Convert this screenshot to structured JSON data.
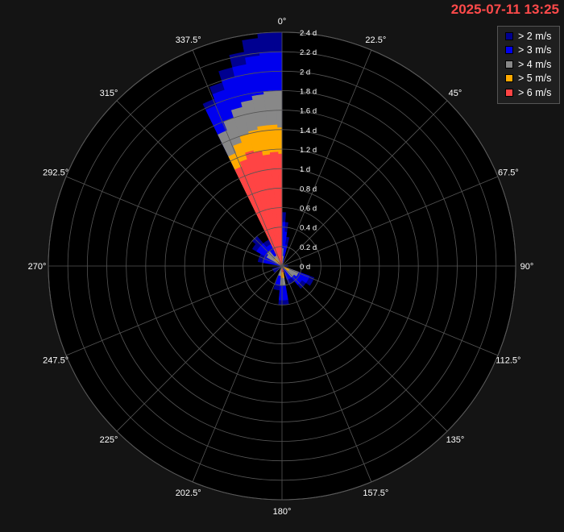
{
  "timestamp": "2025-07-11 13:25",
  "chart_data": {
    "type": "polar-stacked-bar",
    "title": "",
    "radial_unit": "d",
    "radial_range": [
      0,
      2.4
    ],
    "radial_ticks": [
      0,
      0.2,
      0.4,
      0.6,
      0.8,
      1,
      1.2,
      1.4,
      1.6,
      1.8,
      2,
      2.2,
      2.4
    ],
    "radial_tick_labels": [
      "0 d",
      "0.2 d",
      "0.4 d",
      "0.6 d",
      "0.8 d",
      "1 d",
      "1.2 d",
      "1.4 d",
      "1.6 d",
      "1.8 d",
      "2 d",
      "2.2 d",
      "2.4 d"
    ],
    "angle_labels": [
      "0°",
      "22.5°",
      "45°",
      "67.5°",
      "90°",
      "112.5°",
      "135°",
      "157.5°",
      "180°",
      "202.5°",
      "225°",
      "247.5°",
      "270°",
      "292.5°",
      "315°",
      "337.5°"
    ],
    "grid": true,
    "legend_position": "top-right",
    "series": [
      {
        "name": "> 2 m/s",
        "color": "#000090",
        "bins": [
          {
            "from": -26,
            "to": -22,
            "r": 1.85
          },
          {
            "from": -22,
            "to": -18,
            "r": 1.98
          },
          {
            "from": -18,
            "to": -14,
            "r": 2.1
          },
          {
            "from": -14,
            "to": -10,
            "r": 2.23
          },
          {
            "from": -10,
            "to": -6,
            "r": 2.35
          },
          {
            "from": -6,
            "to": -2,
            "r": 2.4
          },
          {
            "from": -2,
            "to": 0,
            "r": 2.4
          },
          {
            "from": 0,
            "to": 4,
            "r": 0.55
          },
          {
            "from": 4,
            "to": 8,
            "r": 0.45
          },
          {
            "from": 8,
            "to": 14,
            "r": 0.3
          },
          {
            "from": 80,
            "to": 95,
            "r": 0.06
          },
          {
            "from": 110,
            "to": 125,
            "r": 0.35
          },
          {
            "from": 125,
            "to": 140,
            "r": 0.3
          },
          {
            "from": 140,
            "to": 160,
            "r": 0.2
          },
          {
            "from": 170,
            "to": 185,
            "r": 0.4
          },
          {
            "from": 185,
            "to": 200,
            "r": 0.25
          },
          {
            "from": 230,
            "to": 255,
            "r": 0.1
          },
          {
            "from": 280,
            "to": 300,
            "r": 0.25
          },
          {
            "from": 300,
            "to": 310,
            "r": 0.35
          },
          {
            "from": 310,
            "to": 320,
            "r": 0.4
          },
          {
            "from": 320,
            "to": 334,
            "r": 0.3
          }
        ]
      },
      {
        "name": "> 3 m/s",
        "color": "#0000ee",
        "bins": [
          {
            "from": -26,
            "to": -22,
            "r": 1.78
          },
          {
            "from": -22,
            "to": -18,
            "r": 1.9
          },
          {
            "from": -18,
            "to": -14,
            "r": 2.0
          },
          {
            "from": -14,
            "to": -10,
            "r": 2.1
          },
          {
            "from": -10,
            "to": -6,
            "r": 2.17
          },
          {
            "from": -6,
            "to": -2,
            "r": 2.2
          },
          {
            "from": -2,
            "to": 0,
            "r": 2.2
          },
          {
            "from": 0,
            "to": 4,
            "r": 0.45
          },
          {
            "from": 4,
            "to": 8,
            "r": 0.35
          },
          {
            "from": 8,
            "to": 14,
            "r": 0.22
          },
          {
            "from": 110,
            "to": 125,
            "r": 0.3
          },
          {
            "from": 125,
            "to": 140,
            "r": 0.25
          },
          {
            "from": 140,
            "to": 160,
            "r": 0.15
          },
          {
            "from": 170,
            "to": 185,
            "r": 0.35
          },
          {
            "from": 185,
            "to": 200,
            "r": 0.2
          },
          {
            "from": 280,
            "to": 300,
            "r": 0.2
          },
          {
            "from": 300,
            "to": 310,
            "r": 0.3
          },
          {
            "from": 310,
            "to": 320,
            "r": 0.3
          },
          {
            "from": 320,
            "to": 334,
            "r": 0.25
          }
        ]
      },
      {
        "name": "> 4 m/s",
        "color": "#888888",
        "bins": [
          {
            "from": -26,
            "to": -22,
            "r": 1.5
          },
          {
            "from": -22,
            "to": -18,
            "r": 1.6
          },
          {
            "from": -18,
            "to": -14,
            "r": 1.68
          },
          {
            "from": -14,
            "to": -10,
            "r": 1.73
          },
          {
            "from": -10,
            "to": -6,
            "r": 1.77
          },
          {
            "from": -6,
            "to": -2,
            "r": 1.8
          },
          {
            "from": -2,
            "to": 0,
            "r": 1.8
          },
          {
            "from": 0,
            "to": 4,
            "r": 0.18
          },
          {
            "from": 4,
            "to": 8,
            "r": 0.1
          },
          {
            "from": 110,
            "to": 125,
            "r": 0.18
          },
          {
            "from": 125,
            "to": 140,
            "r": 0.15
          },
          {
            "from": 170,
            "to": 185,
            "r": 0.2
          },
          {
            "from": 185,
            "to": 200,
            "r": 0.1
          },
          {
            "from": 300,
            "to": 310,
            "r": 0.18
          },
          {
            "from": 310,
            "to": 320,
            "r": 0.2
          },
          {
            "from": 320,
            "to": 334,
            "r": 0.12
          }
        ]
      },
      {
        "name": "> 5 m/s",
        "color": "#ffaa00",
        "bins": [
          {
            "from": -26,
            "to": -22,
            "r": 1.25
          },
          {
            "from": -22,
            "to": -18,
            "r": 1.33
          },
          {
            "from": -18,
            "to": -14,
            "r": 1.4
          },
          {
            "from": -14,
            "to": -10,
            "r": 1.42
          },
          {
            "from": -10,
            "to": -6,
            "r": 1.45
          },
          {
            "from": -6,
            "to": -2,
            "r": 1.45
          },
          {
            "from": -2,
            "to": 0,
            "r": 1.42
          },
          {
            "from": 0,
            "to": 4,
            "r": 0.1
          },
          {
            "from": 110,
            "to": 125,
            "r": 0.08
          },
          {
            "from": 170,
            "to": 185,
            "r": 0.12
          },
          {
            "from": 310,
            "to": 320,
            "r": 0.1
          }
        ]
      },
      {
        "name": "> 6 m/s",
        "color": "#ff4444",
        "bins": [
          {
            "from": -26,
            "to": -22,
            "r": 1.1
          },
          {
            "from": -22,
            "to": -18,
            "r": 1.15
          },
          {
            "from": -18,
            "to": -14,
            "r": 1.22
          },
          {
            "from": -14,
            "to": -10,
            "r": 1.2
          },
          {
            "from": -10,
            "to": -6,
            "r": 1.15
          },
          {
            "from": -6,
            "to": -2,
            "r": 1.17
          },
          {
            "from": -2,
            "to": 0,
            "r": 1.15
          },
          {
            "from": 0,
            "to": 4,
            "r": 0.05
          },
          {
            "from": 170,
            "to": 185,
            "r": 0.06
          },
          {
            "from": 310,
            "to": 320,
            "r": 0.05
          }
        ]
      }
    ]
  }
}
